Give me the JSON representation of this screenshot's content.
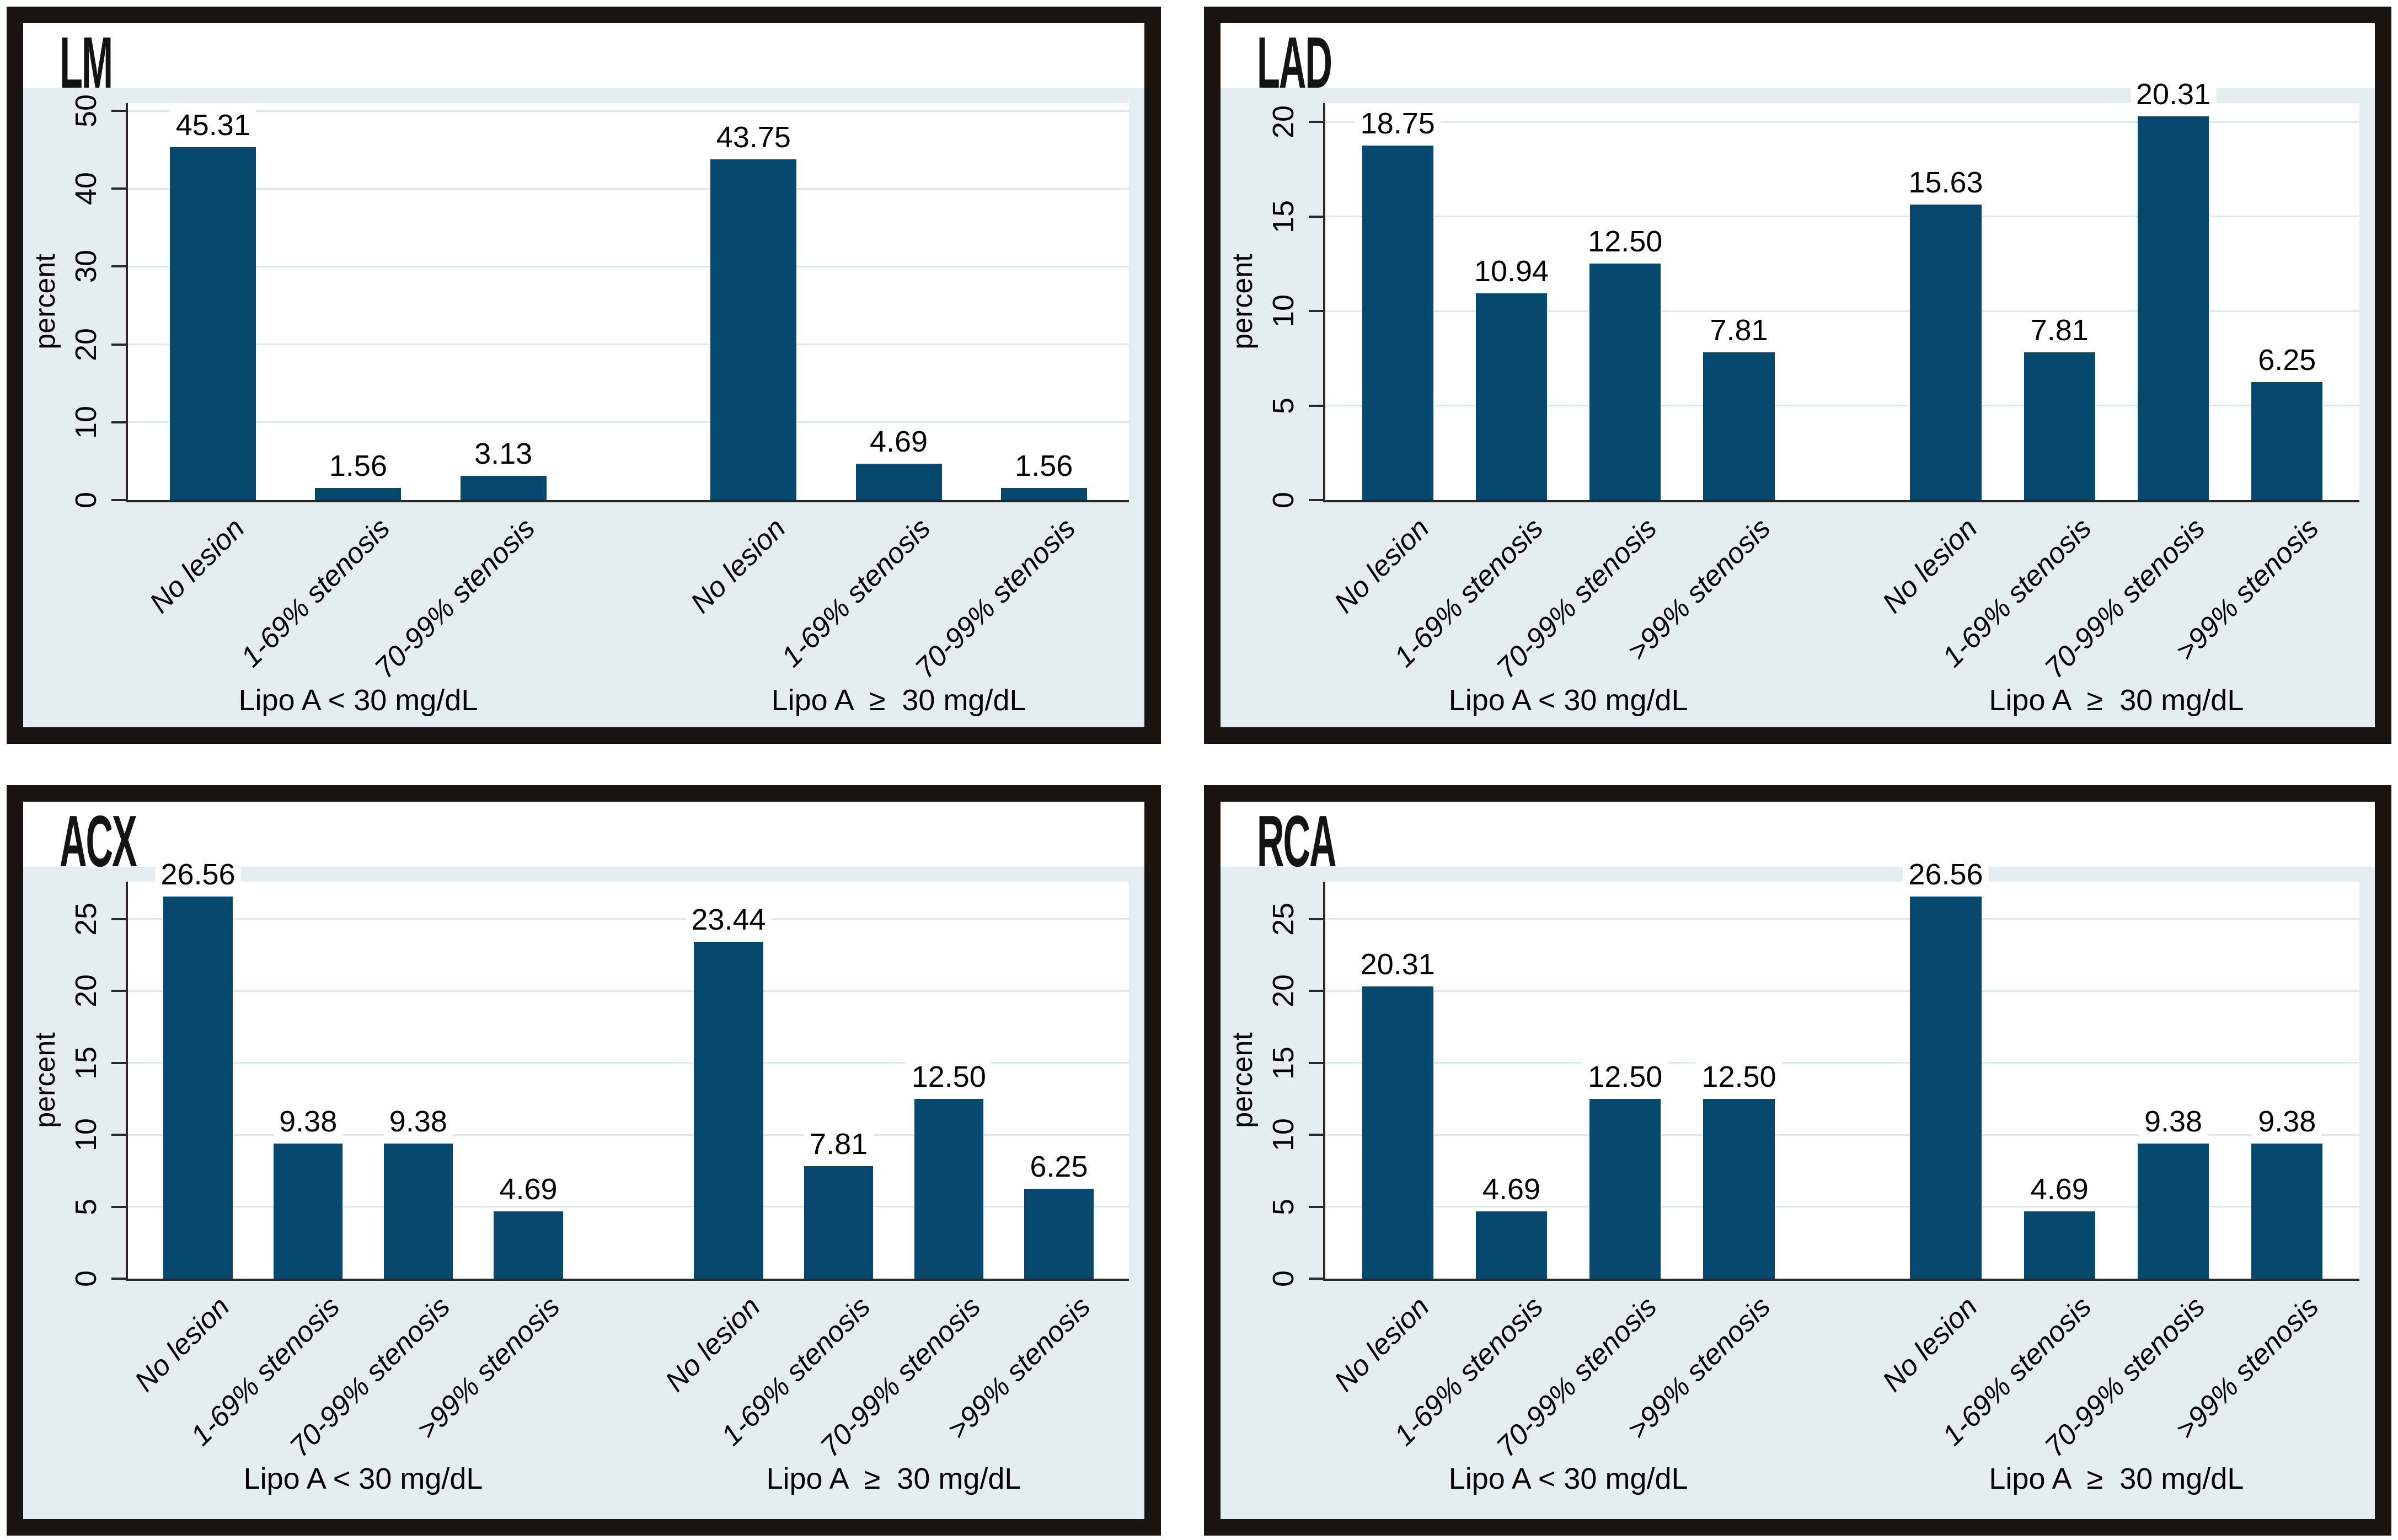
{
  "figure": {
    "description_visible_text_only": true,
    "colors": {
      "bar": "#07496e",
      "panel_border": "#191312",
      "chart_background": "#e4eef0",
      "plot_background": "#ffffff",
      "gridline": "#dde9ec",
      "axis": "#2b2828",
      "text": "#000000"
    }
  },
  "chart_data": [
    {
      "type": "bar",
      "title": "LM",
      "ylabel": "percent",
      "ylim": [
        0,
        51
      ],
      "yticks": [
        0,
        10,
        20,
        30,
        40,
        50
      ],
      "ytick_labels": [
        "0",
        "10",
        "20",
        "30",
        "40",
        "50"
      ],
      "grid": true,
      "legend_position": "none",
      "groups": [
        {
          "label": "Lipo A < 30 mg/dL",
          "categories": [
            "No lesion",
            "1-69% stenosis",
            "70-99% stenosis"
          ],
          "values": [
            45.31,
            1.56,
            3.13
          ],
          "value_labels": [
            "45.31",
            "1.56",
            "3.13"
          ]
        },
        {
          "label": "Lipo A  ≥  30 mg/dL",
          "categories": [
            "No lesion",
            "1-69% stenosis",
            "70-99% stenosis"
          ],
          "values": [
            43.75,
            4.69,
            1.56
          ],
          "value_labels": [
            "43.75",
            "4.69",
            "1.56"
          ]
        }
      ],
      "layout": {
        "step_pct": 14.5,
        "g1_start_pct": 8.5,
        "g2_start_pct": 62.5,
        "bar_w_pct": 8.6
      }
    },
    {
      "type": "bar",
      "title": "LAD",
      "ylabel": "percent",
      "ylim": [
        0,
        21
      ],
      "yticks": [
        0,
        5,
        10,
        15,
        20
      ],
      "ytick_labels": [
        "0",
        "5",
        "10",
        "15",
        "20"
      ],
      "grid": true,
      "legend_position": "none",
      "groups": [
        {
          "label": "Lipo A < 30 mg/dL",
          "categories": [
            "No lesion",
            "1-69% stenosis",
            "70-99% stenosis",
            ">99% stenosis"
          ],
          "values": [
            18.75,
            10.94,
            12.5,
            7.81
          ],
          "value_labels": [
            "18.75",
            "10.94",
            "12.50",
            "7.81"
          ]
        },
        {
          "label": "Lipo A  ≥  30 mg/dL",
          "categories": [
            "No lesion",
            "1-69% stenosis",
            "70-99% stenosis",
            ">99% stenosis"
          ],
          "values": [
            15.63,
            7.81,
            20.31,
            6.25
          ],
          "value_labels": [
            "15.63",
            "7.81",
            "20.31",
            "6.25"
          ]
        }
      ],
      "layout": {
        "step_pct": 11.0,
        "g1_start_pct": 7.0,
        "g2_start_pct": 60.0,
        "bar_w_pct": 6.9
      }
    },
    {
      "type": "bar",
      "title": "ACX",
      "ylabel": "percent",
      "ylim": [
        0,
        27.6
      ],
      "yticks": [
        0,
        5,
        10,
        15,
        20,
        25
      ],
      "ytick_labels": [
        "0",
        "5",
        "10",
        "15",
        "20",
        "25"
      ],
      "grid": true,
      "legend_position": "none",
      "groups": [
        {
          "label": "Lipo A < 30 mg/dL",
          "categories": [
            "No lesion",
            "1-69% stenosis",
            "70-99% stenosis",
            ">99% stenosis"
          ],
          "values": [
            26.56,
            9.38,
            9.38,
            4.69
          ],
          "value_labels": [
            "26.56",
            "9.38",
            "9.38",
            "4.69"
          ]
        },
        {
          "label": "Lipo A  ≥  30 mg/dL",
          "categories": [
            "No lesion",
            "1-69% stenosis",
            "70-99% stenosis",
            ">99% stenosis"
          ],
          "values": [
            23.44,
            7.81,
            12.5,
            6.25
          ],
          "value_labels": [
            "23.44",
            "7.81",
            "12.50",
            "6.25"
          ]
        }
      ],
      "layout": {
        "step_pct": 11.0,
        "g1_start_pct": 7.0,
        "g2_start_pct": 60.0,
        "bar_w_pct": 6.9
      }
    },
    {
      "type": "bar",
      "title": "RCA",
      "ylabel": "percent",
      "ylim": [
        0,
        27.6
      ],
      "yticks": [
        0,
        5,
        10,
        15,
        20,
        25
      ],
      "ytick_labels": [
        "0",
        "5",
        "10",
        "15",
        "20",
        "25"
      ],
      "grid": true,
      "legend_position": "none",
      "groups": [
        {
          "label": "Lipo A < 30 mg/dL",
          "categories": [
            "No lesion",
            "1-69% stenosis",
            "70-99% stenosis",
            ">99% stenosis"
          ],
          "values": [
            20.31,
            4.69,
            12.5,
            12.5
          ],
          "value_labels": [
            "20.31",
            "4.69",
            "12.50",
            "12.50"
          ]
        },
        {
          "label": "Lipo A  ≥  30 mg/dL",
          "categories": [
            "No lesion",
            "1-69% stenosis",
            "70-99% stenosis",
            ">99% stenosis"
          ],
          "values": [
            26.56,
            4.69,
            9.38,
            9.38
          ],
          "value_labels": [
            "26.56",
            "4.69",
            "9.38",
            "9.38"
          ]
        }
      ],
      "layout": {
        "step_pct": 11.0,
        "g1_start_pct": 7.0,
        "g2_start_pct": 60.0,
        "bar_w_pct": 6.9
      }
    }
  ]
}
